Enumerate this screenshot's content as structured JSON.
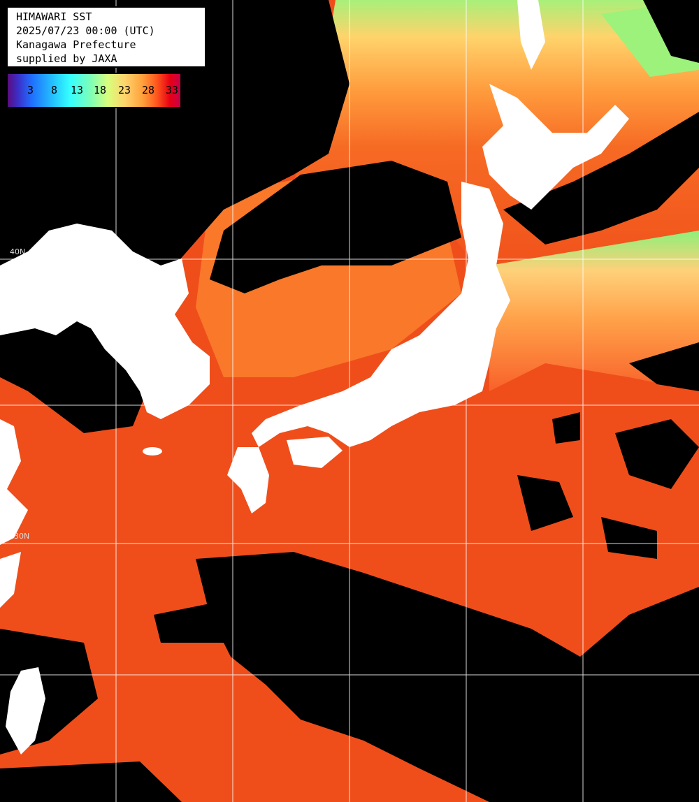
{
  "info": {
    "title": "HIMAWARI SST",
    "datetime": "2025/07/23 00:00 (UTC)",
    "region": "Kanagawa Prefecture",
    "credit": "supplied by JAXA"
  },
  "legend": {
    "ticks": [
      "3",
      "8",
      "13",
      "18",
      "23",
      "28",
      "33"
    ]
  },
  "grid": {
    "lat_labels": [
      "40N",
      "30N"
    ]
  },
  "colors": {
    "land": "#ffffff",
    "cloud_missing": "#000000",
    "warm_sea": "#f1501a",
    "mid_sea": "#ff9a3c",
    "cool_sea": "#c9f36a",
    "grid_line": "#ffffff"
  }
}
